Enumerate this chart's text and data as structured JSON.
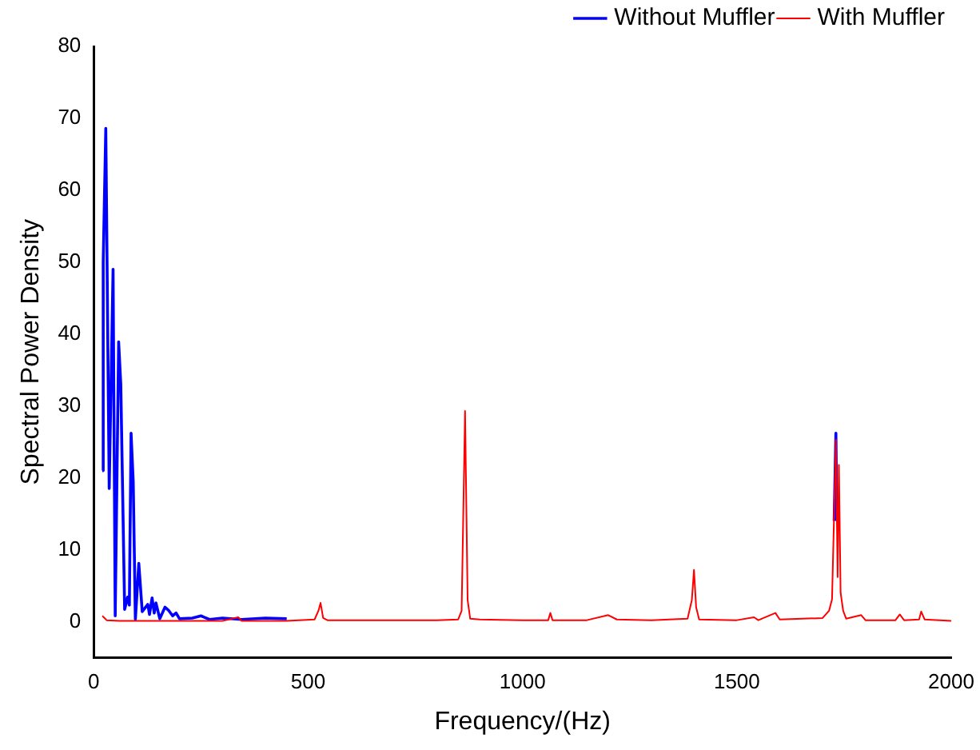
{
  "chart_data": {
    "type": "line",
    "xlabel": "Frequency/(Hz)",
    "ylabel": "Spectral Power Density",
    "xlim": [
      0,
      2000
    ],
    "xticks": [
      0,
      500,
      1000,
      1500,
      2000
    ],
    "ylim": [
      -5,
      80
    ],
    "yticks": [
      0,
      10,
      20,
      30,
      40,
      50,
      60,
      70,
      80
    ],
    "grid": false,
    "legend": "top right",
    "series": [
      {
        "name": "Without Muffler",
        "color": "#0000ff",
        "x": [
          20,
          22,
          28,
          36,
          45,
          50,
          58,
          63,
          72,
          79,
          83,
          87,
          92,
          97,
          105,
          113,
          126,
          130,
          136,
          141,
          145,
          154,
          166,
          174,
          184,
          192,
          200,
          230,
          250,
          270,
          300,
          345,
          400,
          450,
          500,
          1727,
          1731,
          1733
        ],
        "values": [
          21,
          50,
          68.6,
          18.5,
          49,
          0.8,
          38.9,
          33,
          1.7,
          3.4,
          2.3,
          26.2,
          19.5,
          0.3,
          8.1,
          1.4,
          2.4,
          1,
          3.3,
          1.2,
          2.6,
          0.4,
          2,
          1.6,
          0.8,
          1.2,
          0.4,
          0.5,
          0.8,
          0.3,
          0.5,
          0.3,
          0.5,
          0.4,
          null,
          14,
          26.2,
          14
        ]
      },
      {
        "name": "With Muffler",
        "color": "#ff0000",
        "x": [
          20,
          30,
          60,
          100,
          150,
          200,
          230,
          250,
          270,
          300,
          337,
          345,
          400,
          450,
          515,
          524,
          529,
          535,
          545,
          600,
          700,
          800,
          850,
          858,
          866,
          872,
          878,
          900,
          1000,
          1060,
          1065,
          1070,
          1150,
          1200,
          1220,
          1300,
          1385,
          1395,
          1400,
          1405,
          1412,
          1500,
          1540,
          1550,
          1590,
          1600,
          1700,
          1715,
          1722,
          1731,
          1735,
          1738,
          1742,
          1748,
          1755,
          1790,
          1800,
          1870,
          1880,
          1890,
          1925,
          1930,
          1938,
          2000
        ],
        "values": [
          0.8,
          0.2,
          0.1,
          0.1,
          0.1,
          0.1,
          0.1,
          0.1,
          0.1,
          0.1,
          0.6,
          0.1,
          0.1,
          0.1,
          0.3,
          1.5,
          2.6,
          0.5,
          0.2,
          0.2,
          0.2,
          0.2,
          0.3,
          1.5,
          29.3,
          3,
          0.4,
          0.3,
          0.2,
          0.2,
          1.2,
          0.2,
          0.2,
          0.9,
          0.3,
          0.2,
          0.4,
          3,
          7.2,
          2,
          0.3,
          0.2,
          0.6,
          0.2,
          1.2,
          0.3,
          0.5,
          1.5,
          3.1,
          25.3,
          6.2,
          21.8,
          4,
          1.5,
          0.4,
          0.9,
          0.2,
          0.2,
          1,
          0.2,
          0.3,
          1.4,
          0.3,
          0.1
        ]
      }
    ]
  }
}
